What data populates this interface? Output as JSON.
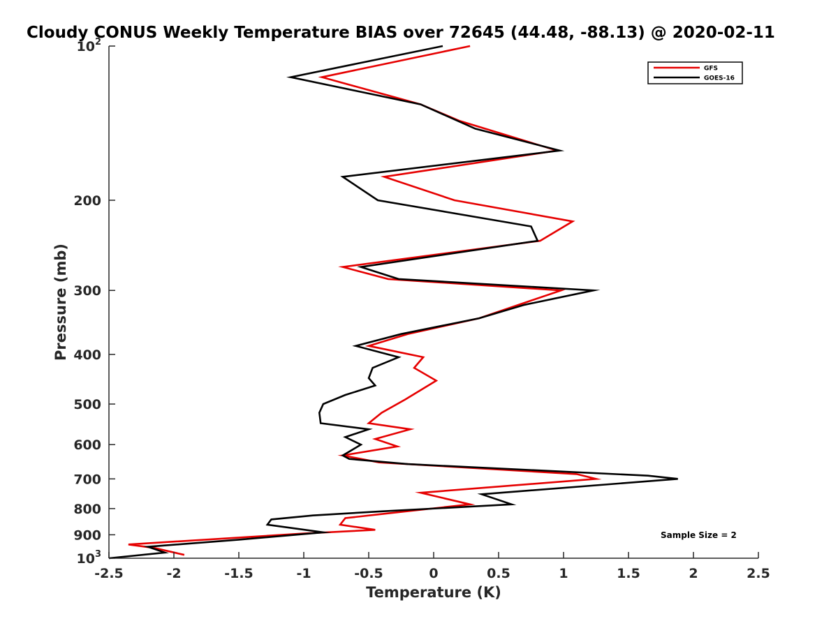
{
  "chart_data": {
    "type": "line",
    "title": "Cloudy CONUS Weekly Temperature BIAS over 72645 (44.48, -88.13) @ 2020-02-11",
    "xlabel": "Temperature (K)",
    "ylabel": "Pressure (mb)",
    "xlim": [
      -2.5,
      2.5
    ],
    "ylim": [
      100,
      1000
    ],
    "y_scale": "log",
    "y_reversed": true,
    "grid": false,
    "legend_position": "top-right",
    "x_ticks": [
      "-2.5",
      "-2",
      "-1.5",
      "-1",
      "-0.5",
      "0",
      "0.5",
      "1",
      "1.5",
      "2",
      "2.5"
    ],
    "x_tick_values": [
      -2.5,
      -2,
      -1.5,
      -1,
      -0.5,
      0,
      0.5,
      1,
      1.5,
      2,
      2.5
    ],
    "y_ticks": [
      {
        "value": 100,
        "base": "10",
        "exp": "2"
      },
      {
        "value": 200,
        "label": "200"
      },
      {
        "value": 300,
        "label": "300"
      },
      {
        "value": 400,
        "label": "400"
      },
      {
        "value": 500,
        "label": "500"
      },
      {
        "value": 600,
        "label": "600"
      },
      {
        "value": 700,
        "label": "700"
      },
      {
        "value": 800,
        "label": "800"
      },
      {
        "value": 900,
        "label": "900"
      },
      {
        "value": 1000,
        "base": "10",
        "exp": "3"
      }
    ],
    "annotation": "Sample Size = 2",
    "series": [
      {
        "name": "GFS",
        "color": "#e60000",
        "points": [
          [
            0.28,
            100
          ],
          [
            -0.86,
            115
          ],
          [
            -0.1,
            130
          ],
          [
            0.2,
            140
          ],
          [
            0.95,
            160
          ],
          [
            -0.38,
            180
          ],
          [
            0.16,
            200
          ],
          [
            1.07,
            220
          ],
          [
            0.82,
            240
          ],
          [
            -0.7,
            270
          ],
          [
            -0.35,
            285
          ],
          [
            0.98,
            300
          ],
          [
            0.35,
            340
          ],
          [
            -0.2,
            365
          ],
          [
            -0.5,
            385
          ],
          [
            -0.08,
            405
          ],
          [
            -0.15,
            425
          ],
          [
            0.02,
            450
          ],
          [
            -0.22,
            490
          ],
          [
            -0.4,
            520
          ],
          [
            -0.5,
            545
          ],
          [
            -0.18,
            560
          ],
          [
            -0.45,
            585
          ],
          [
            -0.28,
            605
          ],
          [
            -0.7,
            630
          ],
          [
            -0.42,
            650
          ],
          [
            1.1,
            685
          ],
          [
            1.25,
            700
          ],
          [
            -0.1,
            745
          ],
          [
            0.28,
            785
          ],
          [
            -0.4,
            820
          ],
          [
            -0.68,
            835
          ],
          [
            -0.72,
            860
          ],
          [
            -0.45,
            880
          ],
          [
            -1.0,
            895
          ],
          [
            -2.35,
            940
          ],
          [
            -2.15,
            955
          ],
          [
            -1.92,
            985
          ]
        ]
      },
      {
        "name": "GOES-16",
        "color": "#000000",
        "points": [
          [
            0.07,
            100
          ],
          [
            -1.1,
            115
          ],
          [
            -0.1,
            130
          ],
          [
            0.32,
            145
          ],
          [
            0.97,
            160
          ],
          [
            -0.7,
            180
          ],
          [
            -0.43,
            200
          ],
          [
            0.75,
            225
          ],
          [
            0.8,
            240
          ],
          [
            -0.56,
            270
          ],
          [
            -0.27,
            285
          ],
          [
            1.23,
            300
          ],
          [
            0.7,
            320
          ],
          [
            0.35,
            340
          ],
          [
            -0.25,
            365
          ],
          [
            -0.6,
            385
          ],
          [
            -0.27,
            405
          ],
          [
            -0.47,
            425
          ],
          [
            -0.5,
            445
          ],
          [
            -0.45,
            460
          ],
          [
            -0.68,
            480
          ],
          [
            -0.85,
            500
          ],
          [
            -0.88,
            520
          ],
          [
            -0.87,
            545
          ],
          [
            -0.5,
            560
          ],
          [
            -0.68,
            580
          ],
          [
            -0.56,
            600
          ],
          [
            -0.63,
            615
          ],
          [
            -0.7,
            630
          ],
          [
            -0.65,
            640
          ],
          [
            -0.2,
            655
          ],
          [
            1.65,
            690
          ],
          [
            1.88,
            700
          ],
          [
            0.37,
            750
          ],
          [
            0.6,
            785
          ],
          [
            -0.4,
            810
          ],
          [
            -0.93,
            825
          ],
          [
            -1.25,
            840
          ],
          [
            -1.28,
            860
          ],
          [
            -0.85,
            890
          ],
          [
            -1.5,
            920
          ],
          [
            -2.2,
            950
          ],
          [
            -2.07,
            975
          ],
          [
            -2.5,
            1000
          ]
        ]
      }
    ]
  }
}
